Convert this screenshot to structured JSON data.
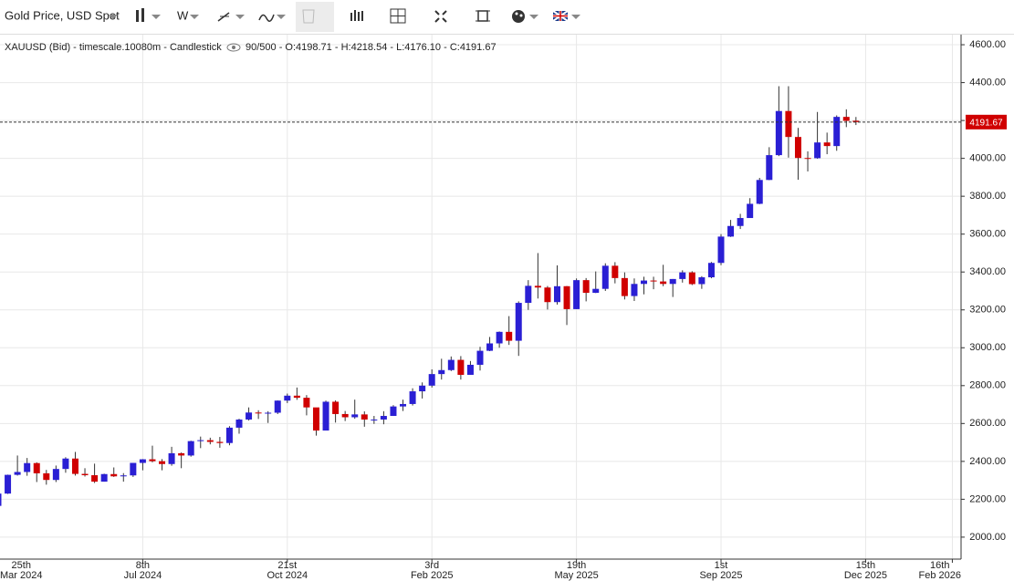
{
  "toolbar": {
    "title": "Gold Price, USD Spot",
    "interval": "W"
  },
  "chart_data": {
    "type": "candlestick",
    "header_left": "XAUUSD (Bid) - timescale.10080m - Candlestick",
    "header_right": "90/500 - O:4198.71 - H:4218.54 - L:4176.10 - C:4191.67",
    "x": [
      "2024-03-25",
      "2024-04-01",
      "2024-04-08",
      "2024-04-15",
      "2024-04-22",
      "2024-04-29",
      "2024-05-06",
      "2024-05-13",
      "2024-05-20",
      "2024-05-27",
      "2024-06-03",
      "2024-06-10",
      "2024-06-17",
      "2024-06-24",
      "2024-07-01",
      "2024-07-08",
      "2024-07-15",
      "2024-07-22",
      "2024-07-29",
      "2024-08-05",
      "2024-08-12",
      "2024-08-19",
      "2024-08-26",
      "2024-09-02",
      "2024-09-09",
      "2024-09-16",
      "2024-09-23",
      "2024-09-30",
      "2024-10-07",
      "2024-10-14",
      "2024-10-21",
      "2024-10-28",
      "2024-11-04",
      "2024-11-11",
      "2024-11-18",
      "2024-11-25",
      "2024-12-02",
      "2024-12-09",
      "2024-12-16",
      "2024-12-23",
      "2024-12-30",
      "2025-01-06",
      "2025-01-13",
      "2025-01-20",
      "2025-01-27",
      "2025-02-03",
      "2025-02-10",
      "2025-02-17",
      "2025-02-24",
      "2025-03-03",
      "2025-03-10",
      "2025-03-17",
      "2025-03-24",
      "2025-03-31",
      "2025-04-07",
      "2025-04-14",
      "2025-04-21",
      "2025-04-28",
      "2025-05-05",
      "2025-05-12",
      "2025-05-19",
      "2025-05-26",
      "2025-06-02",
      "2025-06-09",
      "2025-06-16",
      "2025-06-23",
      "2025-06-30",
      "2025-07-07",
      "2025-07-14",
      "2025-07-21",
      "2025-07-28",
      "2025-08-04",
      "2025-08-11",
      "2025-08-18",
      "2025-08-25",
      "2025-09-01",
      "2025-09-08",
      "2025-09-15",
      "2025-09-22",
      "2025-09-29",
      "2025-10-06",
      "2025-10-13",
      "2025-10-20",
      "2025-10-27",
      "2025-11-03",
      "2025-11-10",
      "2025-11-17",
      "2025-11-24",
      "2025-12-01",
      "2025-12-08"
    ],
    "open": [
      2165,
      2230,
      2329,
      2344,
      2391,
      2337,
      2302,
      2360,
      2415,
      2334,
      2327,
      2293,
      2333,
      2321,
      2326,
      2392,
      2411,
      2401,
      2386,
      2443,
      2431,
      2507,
      2512,
      2503,
      2497,
      2578,
      2621,
      2658,
      2653,
      2657,
      2721,
      2747,
      2736,
      2685,
      2563,
      2715,
      2650,
      2633,
      2648,
      2621,
      2621,
      2640,
      2690,
      2703,
      2770,
      2800,
      2861,
      2882,
      2936,
      2857,
      2910,
      2984,
      3023,
      3084,
      3037,
      3237,
      3327,
      3318,
      3241,
      3325,
      3204,
      3357,
      3290,
      3311,
      3433,
      3368,
      3273,
      3337,
      3355,
      3350,
      3337,
      3363,
      3398,
      3336,
      3372,
      3448,
      3587,
      3643,
      3685,
      3760,
      3886,
      4017,
      4250,
      4113,
      4002,
      4001,
      4084,
      4065,
      4219,
      4198.71
    ],
    "high": [
      2236,
      2330,
      2431,
      2418,
      2395,
      2355,
      2378,
      2422,
      2450,
      2364,
      2388,
      2335,
      2368,
      2338,
      2392,
      2412,
      2483,
      2412,
      2477,
      2447,
      2509,
      2531,
      2525,
      2529,
      2586,
      2625,
      2685,
      2670,
      2665,
      2722,
      2758,
      2790,
      2750,
      2681,
      2721,
      2722,
      2666,
      2726,
      2664,
      2640,
      2665,
      2697,
      2726,
      2786,
      2817,
      2886,
      2942,
      2954,
      2956,
      2930,
      3005,
      3057,
      3086,
      3167,
      3245,
      3357,
      3500,
      3326,
      3435,
      3326,
      3366,
      3368,
      3403,
      3446,
      3452,
      3398,
      3366,
      3375,
      3375,
      3438,
      3363,
      3409,
      3404,
      3378,
      3453,
      3600,
      3675,
      3707,
      3790,
      3897,
      4059,
      4381,
      4381,
      4161,
      4037,
      4245,
      4136,
      4227,
      4259,
      4218.54
    ],
    "low": [
      2147,
      2228,
      2325,
      2324,
      2291,
      2277,
      2291,
      2340,
      2325,
      2320,
      2286,
      2293,
      2318,
      2293,
      2318,
      2353,
      2395,
      2353,
      2377,
      2364,
      2425,
      2470,
      2490,
      2472,
      2485,
      2546,
      2616,
      2624,
      2603,
      2650,
      2708,
      2725,
      2643,
      2536,
      2563,
      2605,
      2613,
      2625,
      2583,
      2598,
      2596,
      2640,
      2666,
      2695,
      2732,
      2790,
      2832,
      2877,
      2832,
      2858,
      2880,
      2982,
      3000,
      3015,
      2957,
      3200,
      3260,
      3202,
      3228,
      3120,
      3204,
      3245,
      3289,
      3300,
      3340,
      3255,
      3247,
      3282,
      3309,
      3325,
      3268,
      3344,
      3331,
      3311,
      3367,
      3436,
      3585,
      3627,
      3686,
      3758,
      3885,
      4012,
      4004,
      3887,
      3931,
      3998,
      4022,
      4040,
      4165,
      4176.1
    ],
    "close": [
      2230,
      2329,
      2344,
      2391,
      2337,
      2302,
      2360,
      2415,
      2334,
      2327,
      2293,
      2333,
      2321,
      2326,
      2392,
      2411,
      2401,
      2386,
      2443,
      2431,
      2507,
      2512,
      2503,
      2497,
      2578,
      2621,
      2658,
      2653,
      2657,
      2721,
      2747,
      2736,
      2685,
      2563,
      2715,
      2650,
      2633,
      2648,
      2621,
      2621,
      2640,
      2690,
      2703,
      2770,
      2800,
      2861,
      2882,
      2936,
      2857,
      2910,
      2984,
      3023,
      3084,
      3037,
      3237,
      3327,
      3318,
      3241,
      3325,
      3204,
      3357,
      3290,
      3311,
      3433,
      3368,
      3273,
      3337,
      3355,
      3350,
      3337,
      3363,
      3398,
      3336,
      3372,
      3448,
      3587,
      3643,
      3685,
      3760,
      3886,
      4017,
      4250,
      4113,
      4002,
      4001,
      4084,
      4065,
      4219,
      4198,
      4191.67
    ],
    "up_color": "#2a1fd4",
    "down_color": "#d00000",
    "last_price": 4191.67,
    "xlim": [
      "2024-03-25",
      "2026-02-23"
    ],
    "xticks": [
      {
        "value": "2024-03-25",
        "label": "25th Mar 2024"
      },
      {
        "value": "2024-07-08",
        "label": "8th Jul 2024"
      },
      {
        "value": "2024-10-21",
        "label": "21st Oct 2024"
      },
      {
        "value": "2025-02-03",
        "label": "3rd Feb 2025"
      },
      {
        "value": "2025-05-19",
        "label": "19th May 2025"
      },
      {
        "value": "2025-09-01",
        "label": "1st Sep 2025"
      },
      {
        "value": "2025-12-15",
        "label": "15th Dec 2025"
      },
      {
        "value": "2026-02-16",
        "label": "16th Feb 2026"
      }
    ],
    "ylim": [
      1884,
      4658
    ],
    "yticks": [
      {
        "value": 2000,
        "label": "2000.00"
      },
      {
        "value": 2200,
        "label": "2200.00"
      },
      {
        "value": 2400,
        "label": "2400.00"
      },
      {
        "value": 2600,
        "label": "2600.00"
      },
      {
        "value": 2800,
        "label": "2800.00"
      },
      {
        "value": 3000,
        "label": "3000.00"
      },
      {
        "value": 3200,
        "label": "3200.00"
      },
      {
        "value": 3400,
        "label": "3400.00"
      },
      {
        "value": 3600,
        "label": "3600.00"
      },
      {
        "value": 3800,
        "label": "3800.00"
      },
      {
        "value": 4000,
        "label": "4000.00"
      },
      {
        "value": 4200,
        "label": "4200.00"
      },
      {
        "value": 4400,
        "label": "4400.00"
      },
      {
        "value": 4600,
        "label": "4600.00"
      }
    ],
    "grid": true
  }
}
